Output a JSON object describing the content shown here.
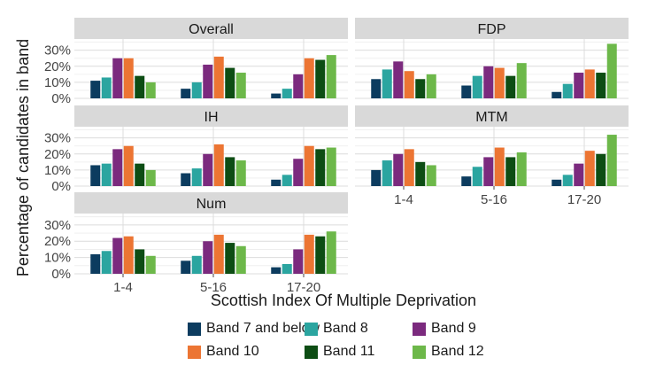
{
  "chart_data": {
    "type": "bar",
    "xlabel": "Scottish Index Of Multiple Deprivation",
    "ylabel": "Percentage of candidates in band",
    "categories": [
      "1-4",
      "5-16",
      "17-20"
    ],
    "y_ticks": [
      "0%",
      "10%",
      "20%",
      "30%"
    ],
    "ylim": [
      0,
      37
    ],
    "grid": true,
    "legend_position": "bottom",
    "series_names": [
      "Band 7 and below",
      "Band 8",
      "Band 9",
      "Band 10",
      "Band 11",
      "Band 12"
    ],
    "colors": [
      "#0c3c5f",
      "#2ba5a0",
      "#7b2a7e",
      "#ec7533",
      "#0d4d14",
      "#6db84a"
    ],
    "panels": [
      {
        "title": "Overall",
        "values": [
          [
            11,
            13,
            25,
            25,
            14,
            10
          ],
          [
            6,
            10,
            21,
            26,
            19,
            16
          ],
          [
            3,
            6,
            15,
            25,
            24,
            27
          ]
        ]
      },
      {
        "title": "FDP",
        "values": [
          [
            12,
            18,
            23,
            17,
            12,
            15
          ],
          [
            8,
            14,
            20,
            19,
            14,
            22
          ],
          [
            4,
            9,
            16,
            18,
            16,
            34
          ]
        ]
      },
      {
        "title": "IH",
        "values": [
          [
            13,
            14,
            23,
            25,
            14,
            10
          ],
          [
            8,
            11,
            20,
            26,
            18,
            16
          ],
          [
            4,
            7,
            17,
            25,
            23,
            24
          ]
        ]
      },
      {
        "title": "MTM",
        "values": [
          [
            10,
            16,
            20,
            23,
            15,
            13
          ],
          [
            6,
            12,
            18,
            24,
            18,
            21
          ],
          [
            4,
            7,
            14,
            22,
            20,
            32
          ]
        ]
      },
      {
        "title": "Num",
        "values": [
          [
            12,
            14,
            22,
            23,
            15,
            11
          ],
          [
            8,
            11,
            20,
            24,
            19,
            17
          ],
          [
            4,
            6,
            15,
            24,
            23,
            26
          ]
        ]
      }
    ]
  }
}
